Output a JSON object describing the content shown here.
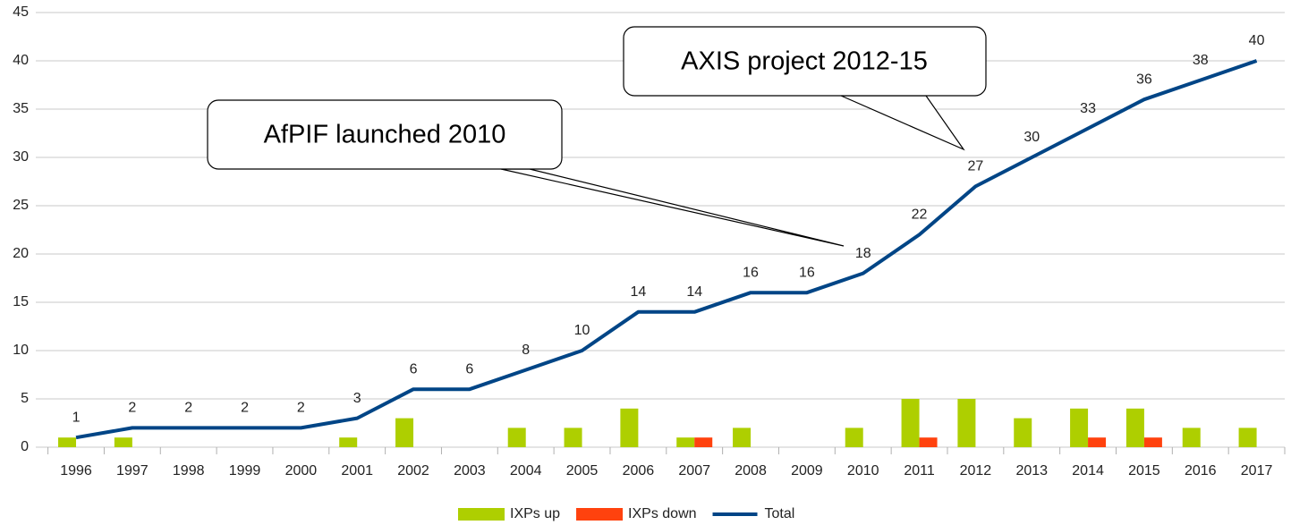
{
  "chart_data": {
    "type": "bar",
    "categories": [
      "1996",
      "1997",
      "1998",
      "1999",
      "2000",
      "2001",
      "2002",
      "2003",
      "2004",
      "2005",
      "2006",
      "2007",
      "2008",
      "2009",
      "2010",
      "2011",
      "2012",
      "2013",
      "2014",
      "2015",
      "2016",
      "2017"
    ],
    "series": [
      {
        "name": "IXPs up",
        "type": "bar",
        "color": "#aecf00",
        "values": [
          1,
          1,
          0,
          0,
          0,
          1,
          3,
          0,
          2,
          2,
          4,
          1,
          2,
          0,
          2,
          5,
          5,
          3,
          4,
          4,
          2,
          2
        ]
      },
      {
        "name": "IXPs down",
        "type": "bar",
        "color": "#ff420e",
        "values": [
          0,
          0,
          0,
          0,
          0,
          0,
          0,
          0,
          0,
          0,
          0,
          1,
          0,
          0,
          0,
          1,
          0,
          0,
          1,
          1,
          0,
          0
        ]
      },
      {
        "name": "Total",
        "type": "line",
        "color": "#004586",
        "data_labels": true,
        "values": [
          1,
          2,
          2,
          2,
          2,
          3,
          6,
          6,
          8,
          10,
          14,
          14,
          16,
          16,
          18,
          22,
          27,
          30,
          33,
          36,
          38,
          40
        ]
      }
    ],
    "ylim": [
      0,
      45
    ],
    "yticks": [
      0,
      5,
      10,
      15,
      20,
      25,
      30,
      35,
      40,
      45
    ],
    "grid": true,
    "legend": "bottom",
    "annotations": [
      "AfPIF launched 2010",
      "AXIS project 2012-15"
    ]
  }
}
